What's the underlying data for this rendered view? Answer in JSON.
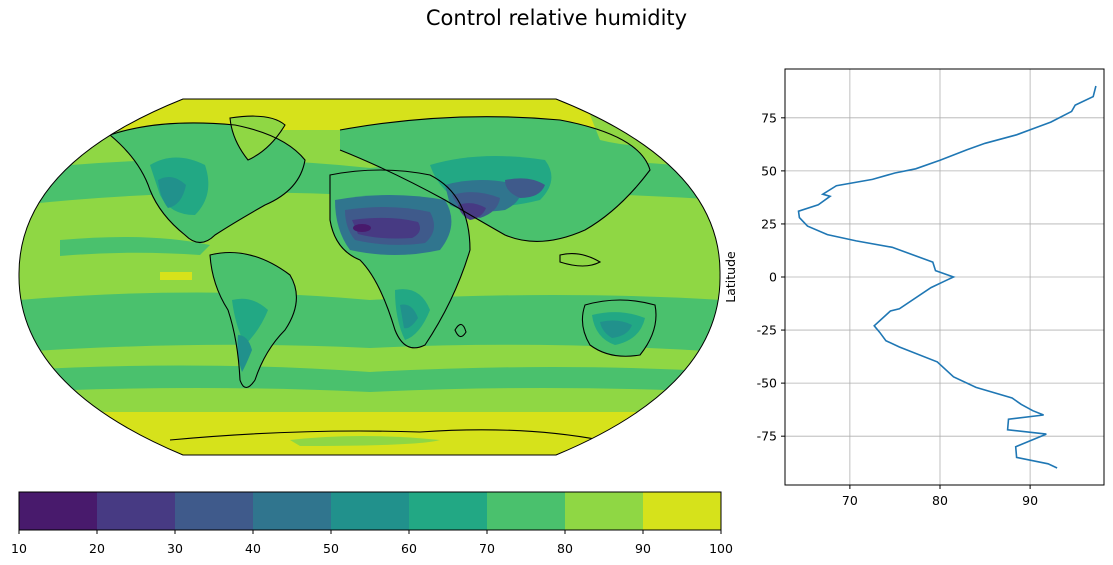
{
  "figure": {
    "title": "Control relative humidity"
  },
  "chart_data": [
    {
      "type": "heatmap",
      "description_kind": "filled contour map (Robinson projection) with coastlines",
      "colorbar": {
        "ticks": [
          10,
          20,
          30,
          40,
          50,
          60,
          70,
          80,
          90,
          100
        ],
        "levels": [
          10,
          20,
          30,
          40,
          50,
          60,
          70,
          80,
          90,
          100
        ],
        "colors": [
          "#481a6c",
          "#473a83",
          "#3f5a8b",
          "#30758e",
          "#21918c",
          "#22a884",
          "#4ac16d",
          "#8fd744",
          "#d6e21b"
        ],
        "orientation": "horizontal"
      }
    },
    {
      "type": "line",
      "xlabel": "",
      "ylabel": "Latitude",
      "xlim": [
        62.8,
        98.2
      ],
      "ylim": [
        -98,
        98
      ],
      "xticks": [
        70,
        80,
        90
      ],
      "yticks": [
        75,
        50,
        25,
        0,
        -25,
        -50,
        -75
      ],
      "grid": true,
      "series": [
        {
          "color": "#1f77b4",
          "x": [
            97.3,
            97.0,
            95.0,
            94.6,
            92.3,
            88.5,
            85.0,
            83.0,
            80.0,
            77.3,
            75.0,
            72.5,
            68.5,
            67.0,
            67.8,
            66.5,
            64.3,
            64.4,
            65.3,
            67.5,
            70.7,
            74.7,
            79.2,
            79.5,
            81.5,
            80.5,
            79.0,
            75.5,
            74.5,
            72.7,
            73.3,
            74.0,
            75.5,
            79.7,
            81.5,
            84.0,
            88.0,
            89.0,
            90.3,
            91.5,
            87.6,
            87.5,
            91.8,
            88.4,
            88.5,
            92.0,
            93.0
          ],
          "y": [
            90,
            85,
            81,
            78,
            73,
            67,
            63,
            60,
            55,
            51,
            49,
            46,
            43,
            39,
            38,
            34,
            31,
            28,
            24,
            20,
            17,
            14,
            7,
            3,
            0,
            -2,
            -5,
            -15,
            -16,
            -23,
            -26,
            -30,
            -33,
            -40,
            -47,
            -52,
            -57,
            -60,
            -63,
            -65,
            -67,
            -72,
            -74,
            -80,
            -85,
            -88,
            -90
          ]
        }
      ]
    }
  ]
}
